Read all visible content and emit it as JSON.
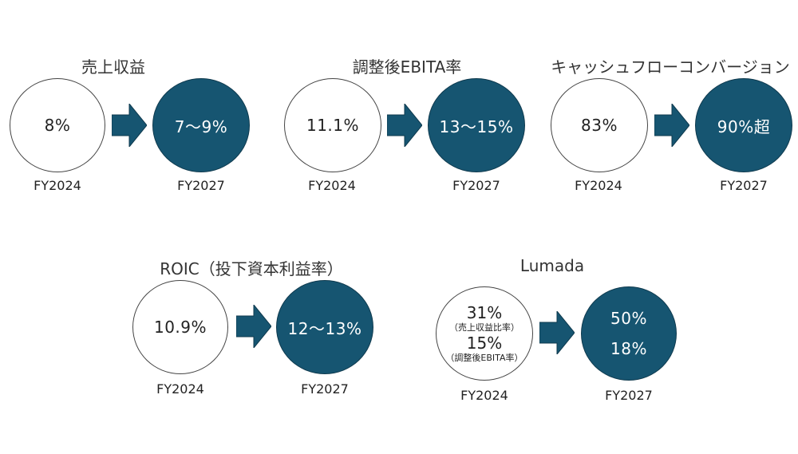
{
  "colors": {
    "target_fill": "#165571",
    "arrow_fill": "#165571",
    "baseline_fill": "#ffffff"
  },
  "metrics": [
    {
      "title": "売上収益",
      "from_value": "8%",
      "to_value": "7〜9%",
      "from_year": "FY2024",
      "to_year": "FY2027"
    },
    {
      "title": "調整後EBITA率",
      "from_value": "11.1%",
      "to_value": "13〜15%",
      "from_year": "FY2024",
      "to_year": "FY2027"
    },
    {
      "title": "キャッシュフローコンバージョン",
      "from_value": "83%",
      "to_value": "90%超",
      "from_year": "FY2024",
      "to_year": "FY2027"
    },
    {
      "title": "ROIC（投下資本利益率）",
      "from_value": "10.9%",
      "to_value": "12〜13%",
      "from_year": "FY2024",
      "to_year": "FY2027"
    }
  ],
  "lumada": {
    "title": "Lumada",
    "from_value_1": "31%",
    "from_note_1": "（売上収益比率）",
    "from_value_2": "15%",
    "from_note_2": "（調整後EBITA率）",
    "to_value_1": "50%",
    "to_value_2": "18%",
    "from_year": "FY2024",
    "to_year": "FY2027"
  }
}
